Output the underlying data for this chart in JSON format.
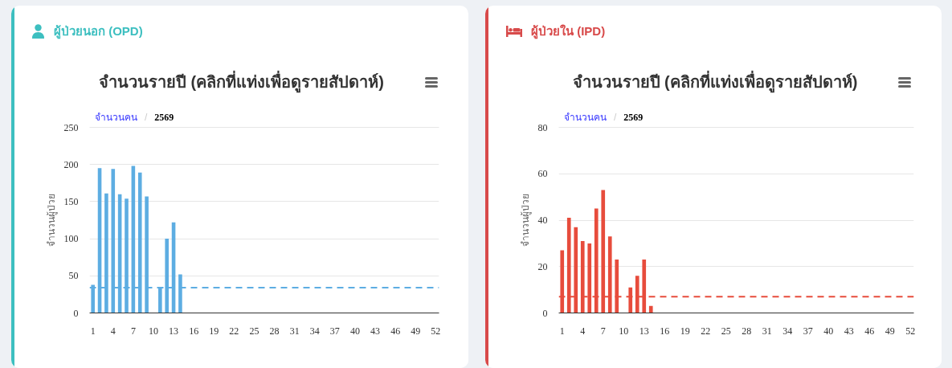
{
  "chart_data": [
    {
      "type": "bar",
      "title": "ผู้ป่วยนอก (OPD)",
      "subtitle": "จำนวนรายปี (คลิกที่แท่งเพื่อดูรายสัปดาห์)",
      "annotations": [
        "จำนวนคน",
        "/",
        "2569"
      ],
      "ylabel": "จำนวนผู้ป่วย",
      "x": [
        1,
        2,
        3,
        4,
        5,
        6,
        7,
        8,
        9,
        10,
        11,
        12,
        13,
        14
      ],
      "values": [
        38,
        195,
        161,
        194,
        160,
        154,
        198,
        189,
        157,
        null,
        34,
        100,
        122,
        52
      ],
      "color": "#5dade2",
      "xlim": [
        0.5,
        52.5
      ],
      "xticks": [
        1,
        4,
        7,
        10,
        13,
        16,
        19,
        22,
        25,
        28,
        31,
        34,
        37,
        40,
        43,
        46,
        49,
        52
      ],
      "ylim": [
        0,
        250
      ],
      "yticks": [
        0,
        50,
        100,
        150,
        200,
        250
      ],
      "grid": "y",
      "ref_lines": [
        {
          "axis": "y",
          "value": 34,
          "color": "#5dade2",
          "line_style": "dashed"
        }
      ]
    },
    {
      "type": "bar",
      "title": "ผู้ป่วยใน (IPD)",
      "subtitle": "จำนวนรายปี (คลิกที่แท่งเพื่อดูรายสัปดาห์)",
      "annotations": [
        "จำนวนคน",
        "/",
        "2569"
      ],
      "ylabel": "จำนวนผู้ป่วย",
      "x": [
        1,
        2,
        3,
        4,
        5,
        6,
        7,
        8,
        9,
        10,
        11,
        12,
        13,
        14
      ],
      "values": [
        27,
        41,
        37,
        31,
        30,
        45,
        53,
        33,
        23,
        null,
        11,
        16,
        23,
        3
      ],
      "color": "#e74c3c",
      "xlim": [
        0.5,
        52.5
      ],
      "xticks": [
        1,
        4,
        7,
        10,
        13,
        16,
        19,
        22,
        25,
        28,
        31,
        34,
        37,
        40,
        43,
        46,
        49,
        52
      ],
      "ylim": [
        0,
        80
      ],
      "yticks": [
        0,
        20,
        40,
        60,
        80
      ],
      "grid": "y",
      "ref_lines": [
        {
          "axis": "y",
          "value": 7,
          "color": "#e74c3c",
          "line_style": "dashed"
        }
      ]
    }
  ]
}
